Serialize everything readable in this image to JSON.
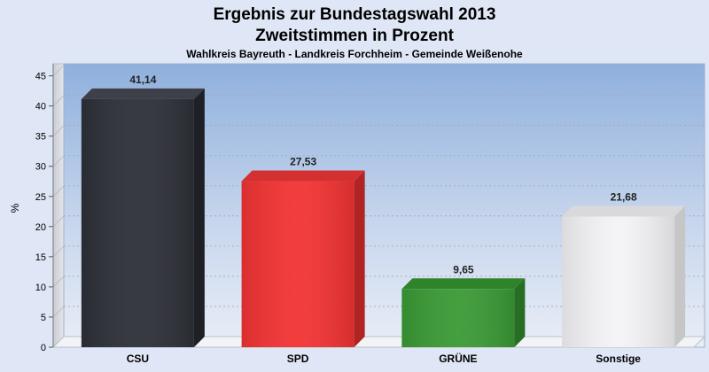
{
  "chart_data": {
    "type": "bar",
    "title": "Ergebnis zur Bundestagswahl 2013",
    "subtitle": "Zweitstimmen in Prozent",
    "subsubtitle": "Wahlkreis Bayreuth - Landkreis Forchheim  - Gemeinde Weißenohe",
    "ylabel": "%",
    "xlabel": "",
    "ylim": [
      0,
      47
    ],
    "yticks": [
      0,
      5,
      10,
      15,
      20,
      25,
      30,
      35,
      40,
      45
    ],
    "grid": true,
    "categories": [
      "CSU",
      "SPD",
      "GRÜNE",
      "Sonstige"
    ],
    "values": [
      41.14,
      27.53,
      9.65,
      21.68
    ],
    "value_labels": [
      "41,14",
      "27,53",
      "9,65",
      "21,68"
    ],
    "colors": [
      "#2e3038",
      "#f23333",
      "#3a9a35",
      "#f4f4f6"
    ],
    "side_colors": [
      "#1e2026",
      "#b02424",
      "#276d24",
      "#c6c6c6"
    ],
    "top_colors": [
      "#3d4049",
      "#d43030",
      "#2f842b",
      "#d9d9db"
    ]
  }
}
